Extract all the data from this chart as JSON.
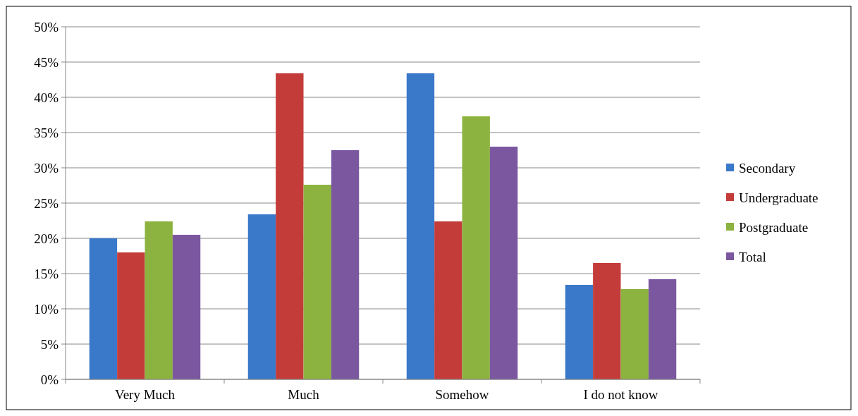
{
  "chart_data": {
    "type": "bar",
    "categories": [
      "Very Much",
      "Much",
      "Somehow",
      "I do not know"
    ],
    "series": [
      {
        "name": "Secondary",
        "color": "#3a78c9",
        "values": [
          20.0,
          23.4,
          43.4,
          13.4
        ]
      },
      {
        "name": "Undergraduate",
        "color": "#c43c39",
        "values": [
          18.0,
          43.4,
          22.4,
          16.5
        ]
      },
      {
        "name": "Postgraduate",
        "color": "#8cb33f",
        "values": [
          22.4,
          27.6,
          37.3,
          12.8
        ]
      },
      {
        "name": "Total",
        "color": "#7b57a0",
        "values": [
          20.5,
          32.5,
          33.0,
          14.2
        ]
      }
    ],
    "ylim": [
      0,
      50
    ],
    "yticks": [
      {
        "value": 0,
        "label": "0%"
      },
      {
        "value": 5,
        "label": "5%"
      },
      {
        "value": 10,
        "label": "10%"
      },
      {
        "value": 15,
        "label": "15%"
      },
      {
        "value": 20,
        "label": "20%"
      },
      {
        "value": 25,
        "label": "25%"
      },
      {
        "value": 30,
        "label": "30%"
      },
      {
        "value": 35,
        "label": "35%"
      },
      {
        "value": 40,
        "label": "40%"
      },
      {
        "value": 45,
        "label": "45%"
      },
      {
        "value": 50,
        "label": "50%"
      }
    ],
    "grid": "y",
    "legend": "right"
  }
}
